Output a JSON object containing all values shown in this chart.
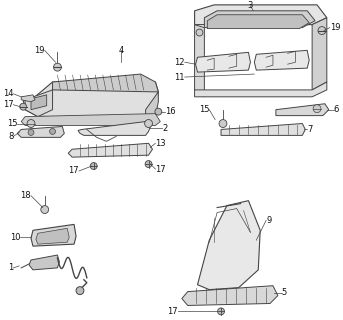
{
  "bg_color": "#ffffff",
  "fig_width": 3.43,
  "fig_height": 3.2,
  "dpi": 100,
  "lc": "#444444",
  "tc": "#111111",
  "fs": 6.0
}
